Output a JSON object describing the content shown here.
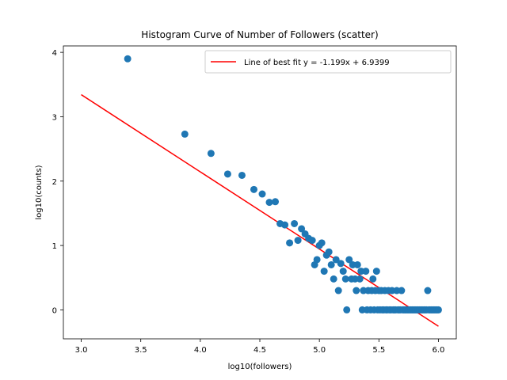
{
  "chart_data": {
    "type": "scatter",
    "title": "Histogram Curve of Number of Followers (scatter)",
    "xlabel": "log10(followers)",
    "ylabel": "log10(counts)",
    "xlim": [
      2.85,
      6.15
    ],
    "ylim": [
      -0.45,
      4.1
    ],
    "xticks": [
      3.0,
      3.5,
      4.0,
      4.5,
      5.0,
      5.5,
      6.0
    ],
    "xtick_labels": [
      "3.0",
      "3.5",
      "4.0",
      "4.5",
      "5.0",
      "5.5",
      "6.0"
    ],
    "yticks": [
      0,
      1,
      2,
      3,
      4
    ],
    "ytick_labels": [
      "0",
      "1",
      "2",
      "3",
      "4"
    ],
    "legend": {
      "position": "upper-right",
      "entries": [
        {
          "label": "Line of best fit y = -1.199x + 6.9399",
          "color": "#ff0000"
        }
      ]
    },
    "series": [
      {
        "kind": "scatter",
        "color": "#1f77b4",
        "points": [
          [
            3.39,
            3.9
          ],
          [
            3.87,
            2.73
          ],
          [
            4.09,
            2.43
          ],
          [
            4.23,
            2.11
          ],
          [
            4.35,
            2.09
          ],
          [
            4.45,
            1.87
          ],
          [
            4.52,
            1.8
          ],
          [
            4.58,
            1.67
          ],
          [
            4.63,
            1.68
          ],
          [
            4.67,
            1.34
          ],
          [
            4.71,
            1.32
          ],
          [
            4.75,
            1.04
          ],
          [
            4.79,
            1.34
          ],
          [
            4.82,
            1.08
          ],
          [
            4.85,
            1.26
          ],
          [
            4.88,
            1.18
          ],
          [
            4.91,
            1.11
          ],
          [
            4.94,
            1.08
          ],
          [
            4.96,
            0.7
          ],
          [
            4.98,
            0.78
          ],
          [
            5.0,
            1.0
          ],
          [
            5.02,
            1.04
          ],
          [
            5.04,
            0.6
          ],
          [
            5.06,
            0.85
          ],
          [
            5.08,
            0.9
          ],
          [
            5.1,
            0.7
          ],
          [
            5.12,
            0.48
          ],
          [
            5.14,
            0.78
          ],
          [
            5.16,
            0.3
          ],
          [
            5.18,
            0.72
          ],
          [
            5.2,
            0.6
          ],
          [
            5.22,
            0.48
          ],
          [
            5.23,
            0.0
          ],
          [
            5.25,
            0.78
          ],
          [
            5.27,
            0.48
          ],
          [
            5.28,
            0.7
          ],
          [
            5.3,
            0.48
          ],
          [
            5.31,
            0.3
          ],
          [
            5.32,
            0.7
          ],
          [
            5.34,
            0.48
          ],
          [
            5.35,
            0.6
          ],
          [
            5.36,
            0.0
          ],
          [
            5.37,
            0.3
          ],
          [
            5.39,
            0.6
          ],
          [
            5.4,
            0.0
          ],
          [
            5.41,
            0.3
          ],
          [
            5.43,
            0.0
          ],
          [
            5.44,
            0.3
          ],
          [
            5.45,
            0.48
          ],
          [
            5.46,
            0.0
          ],
          [
            5.47,
            0.3
          ],
          [
            5.48,
            0.6
          ],
          [
            5.49,
            0.0
          ],
          [
            5.5,
            0.3
          ],
          [
            5.51,
            0.0
          ],
          [
            5.52,
            0.3
          ],
          [
            5.53,
            0.0
          ],
          [
            5.54,
            0.0
          ],
          [
            5.55,
            0.3
          ],
          [
            5.56,
            0.0
          ],
          [
            5.57,
            0.0
          ],
          [
            5.58,
            0.3
          ],
          [
            5.59,
            0.0
          ],
          [
            5.6,
            0.0
          ],
          [
            5.61,
            0.3
          ],
          [
            5.62,
            0.0
          ],
          [
            5.63,
            0.0
          ],
          [
            5.64,
            0.0
          ],
          [
            5.65,
            0.3
          ],
          [
            5.66,
            0.0
          ],
          [
            5.67,
            0.0
          ],
          [
            5.68,
            0.0
          ],
          [
            5.69,
            0.3
          ],
          [
            5.7,
            0.0
          ],
          [
            5.71,
            0.0
          ],
          [
            5.72,
            0.0
          ],
          [
            5.73,
            0.0
          ],
          [
            5.74,
            0.0
          ],
          [
            5.75,
            0.0
          ],
          [
            5.76,
            0.0
          ],
          [
            5.77,
            0.0
          ],
          [
            5.78,
            0.0
          ],
          [
            5.79,
            0.0
          ],
          [
            5.8,
            0.0
          ],
          [
            5.81,
            0.0
          ],
          [
            5.82,
            0.0
          ],
          [
            5.83,
            0.0
          ],
          [
            5.84,
            0.0
          ],
          [
            5.85,
            0.0
          ],
          [
            5.86,
            0.0
          ],
          [
            5.87,
            0.0
          ],
          [
            5.88,
            0.0
          ],
          [
            5.89,
            0.0
          ],
          [
            5.9,
            0.0
          ],
          [
            5.91,
            0.3
          ],
          [
            5.92,
            0.0
          ],
          [
            5.93,
            0.0
          ],
          [
            5.94,
            0.0
          ],
          [
            5.95,
            0.0
          ],
          [
            5.96,
            0.0
          ],
          [
            5.97,
            0.0
          ],
          [
            5.98,
            0.0
          ],
          [
            5.99,
            0.0
          ],
          [
            6.0,
            0.0
          ]
        ]
      },
      {
        "kind": "line",
        "name": "Line of best fit y = -1.199x + 6.9399",
        "color": "#ff0000",
        "slope": -1.199,
        "intercept": 6.9399,
        "x_range": [
          3.0,
          6.0
        ]
      }
    ]
  }
}
